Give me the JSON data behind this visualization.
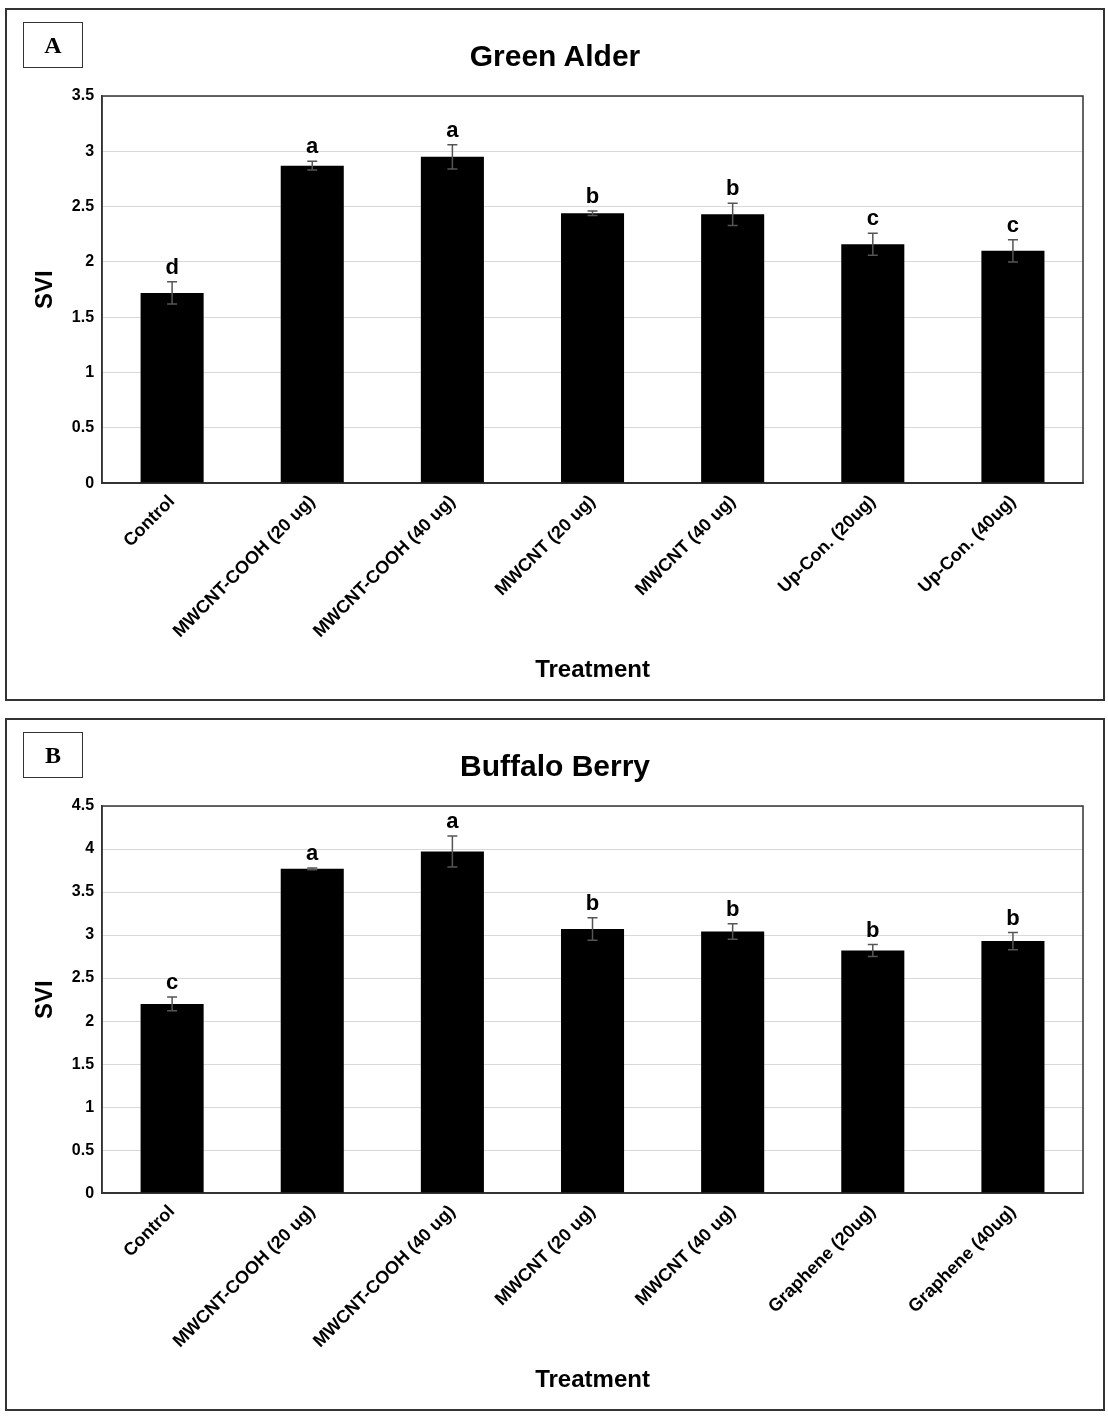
{
  "chart_data": [
    {
      "type": "bar",
      "title": "Green Alder",
      "xlabel": "Treatment",
      "ylabel": "SVI",
      "color": "#000000",
      "grid": "y",
      "categories": [
        "Control",
        "MWCNT-COOH (20 ug)",
        "MWCNT-COOH (40 ug)",
        "MWCNT (20 ug)",
        "MWCNT (40 ug)",
        "Up-Con. (20ug)",
        "Up-Con. (40ug)"
      ],
      "values": [
        1.72,
        2.87,
        2.95,
        2.44,
        2.43,
        2.16,
        2.1
      ],
      "errors": [
        0.1,
        0.04,
        0.11,
        0.02,
        0.1,
        0.1,
        0.1
      ],
      "ylim": [
        0,
        3.5
      ],
      "yticks": [
        0,
        0.5,
        1,
        1.5,
        2,
        2.5,
        3,
        3.5
      ],
      "annotations": [
        "A",
        {
          "text": "d",
          "x": "Control",
          "y": 1.82
        },
        {
          "text": "a",
          "x": "MWCNT-COOH (20 ug)",
          "y": 2.91
        },
        {
          "text": "a",
          "x": "MWCNT-COOH (40 ug)",
          "y": 3.06
        },
        {
          "text": "b",
          "x": "MWCNT (20 ug)",
          "y": 2.46
        },
        {
          "text": "b",
          "x": "MWCNT (40 ug)",
          "y": 2.53
        },
        {
          "text": "c",
          "x": "Up-Con. (20ug)",
          "y": 2.26
        },
        {
          "text": "c",
          "x": "Up-Con. (40ug)",
          "y": 2.2
        }
      ]
    },
    {
      "type": "bar",
      "title": "Buffalo Berry",
      "xlabel": "Treatment",
      "ylabel": "SVI",
      "color": "#000000",
      "grid": "y",
      "categories": [
        "Control",
        "MWCNT-COOH (20 ug)",
        "MWCNT-COOH (40 ug)",
        "MWCNT (20 ug)",
        "MWCNT (40 ug)",
        "Graphene (20ug)",
        "Graphene (40ug)"
      ],
      "values": [
        2.2,
        3.77,
        3.97,
        3.07,
        3.04,
        2.82,
        2.93
      ],
      "errors": [
        0.08,
        0.01,
        0.18,
        0.13,
        0.09,
        0.07,
        0.1
      ],
      "ylim": [
        0,
        4.5
      ],
      "yticks": [
        0,
        0.5,
        1,
        1.5,
        2,
        2.5,
        3,
        3.5,
        4,
        4.5
      ],
      "annotations": [
        "B",
        {
          "text": "c",
          "x": "Control",
          "y": 2.28
        },
        {
          "text": "a",
          "x": "MWCNT-COOH (20 ug)",
          "y": 3.78
        },
        {
          "text": "a",
          "x": "MWCNT-COOH (40 ug)",
          "y": 4.15
        },
        {
          "text": "b",
          "x": "MWCNT (20 ug)",
          "y": 3.2
        },
        {
          "text": "b",
          "x": "MWCNT (40 ug)",
          "y": 3.13
        },
        {
          "text": "b",
          "x": "Graphene (20ug)",
          "y": 2.89
        },
        {
          "text": "b",
          "x": "Graphene (40ug)",
          "y": 3.03
        }
      ]
    }
  ]
}
